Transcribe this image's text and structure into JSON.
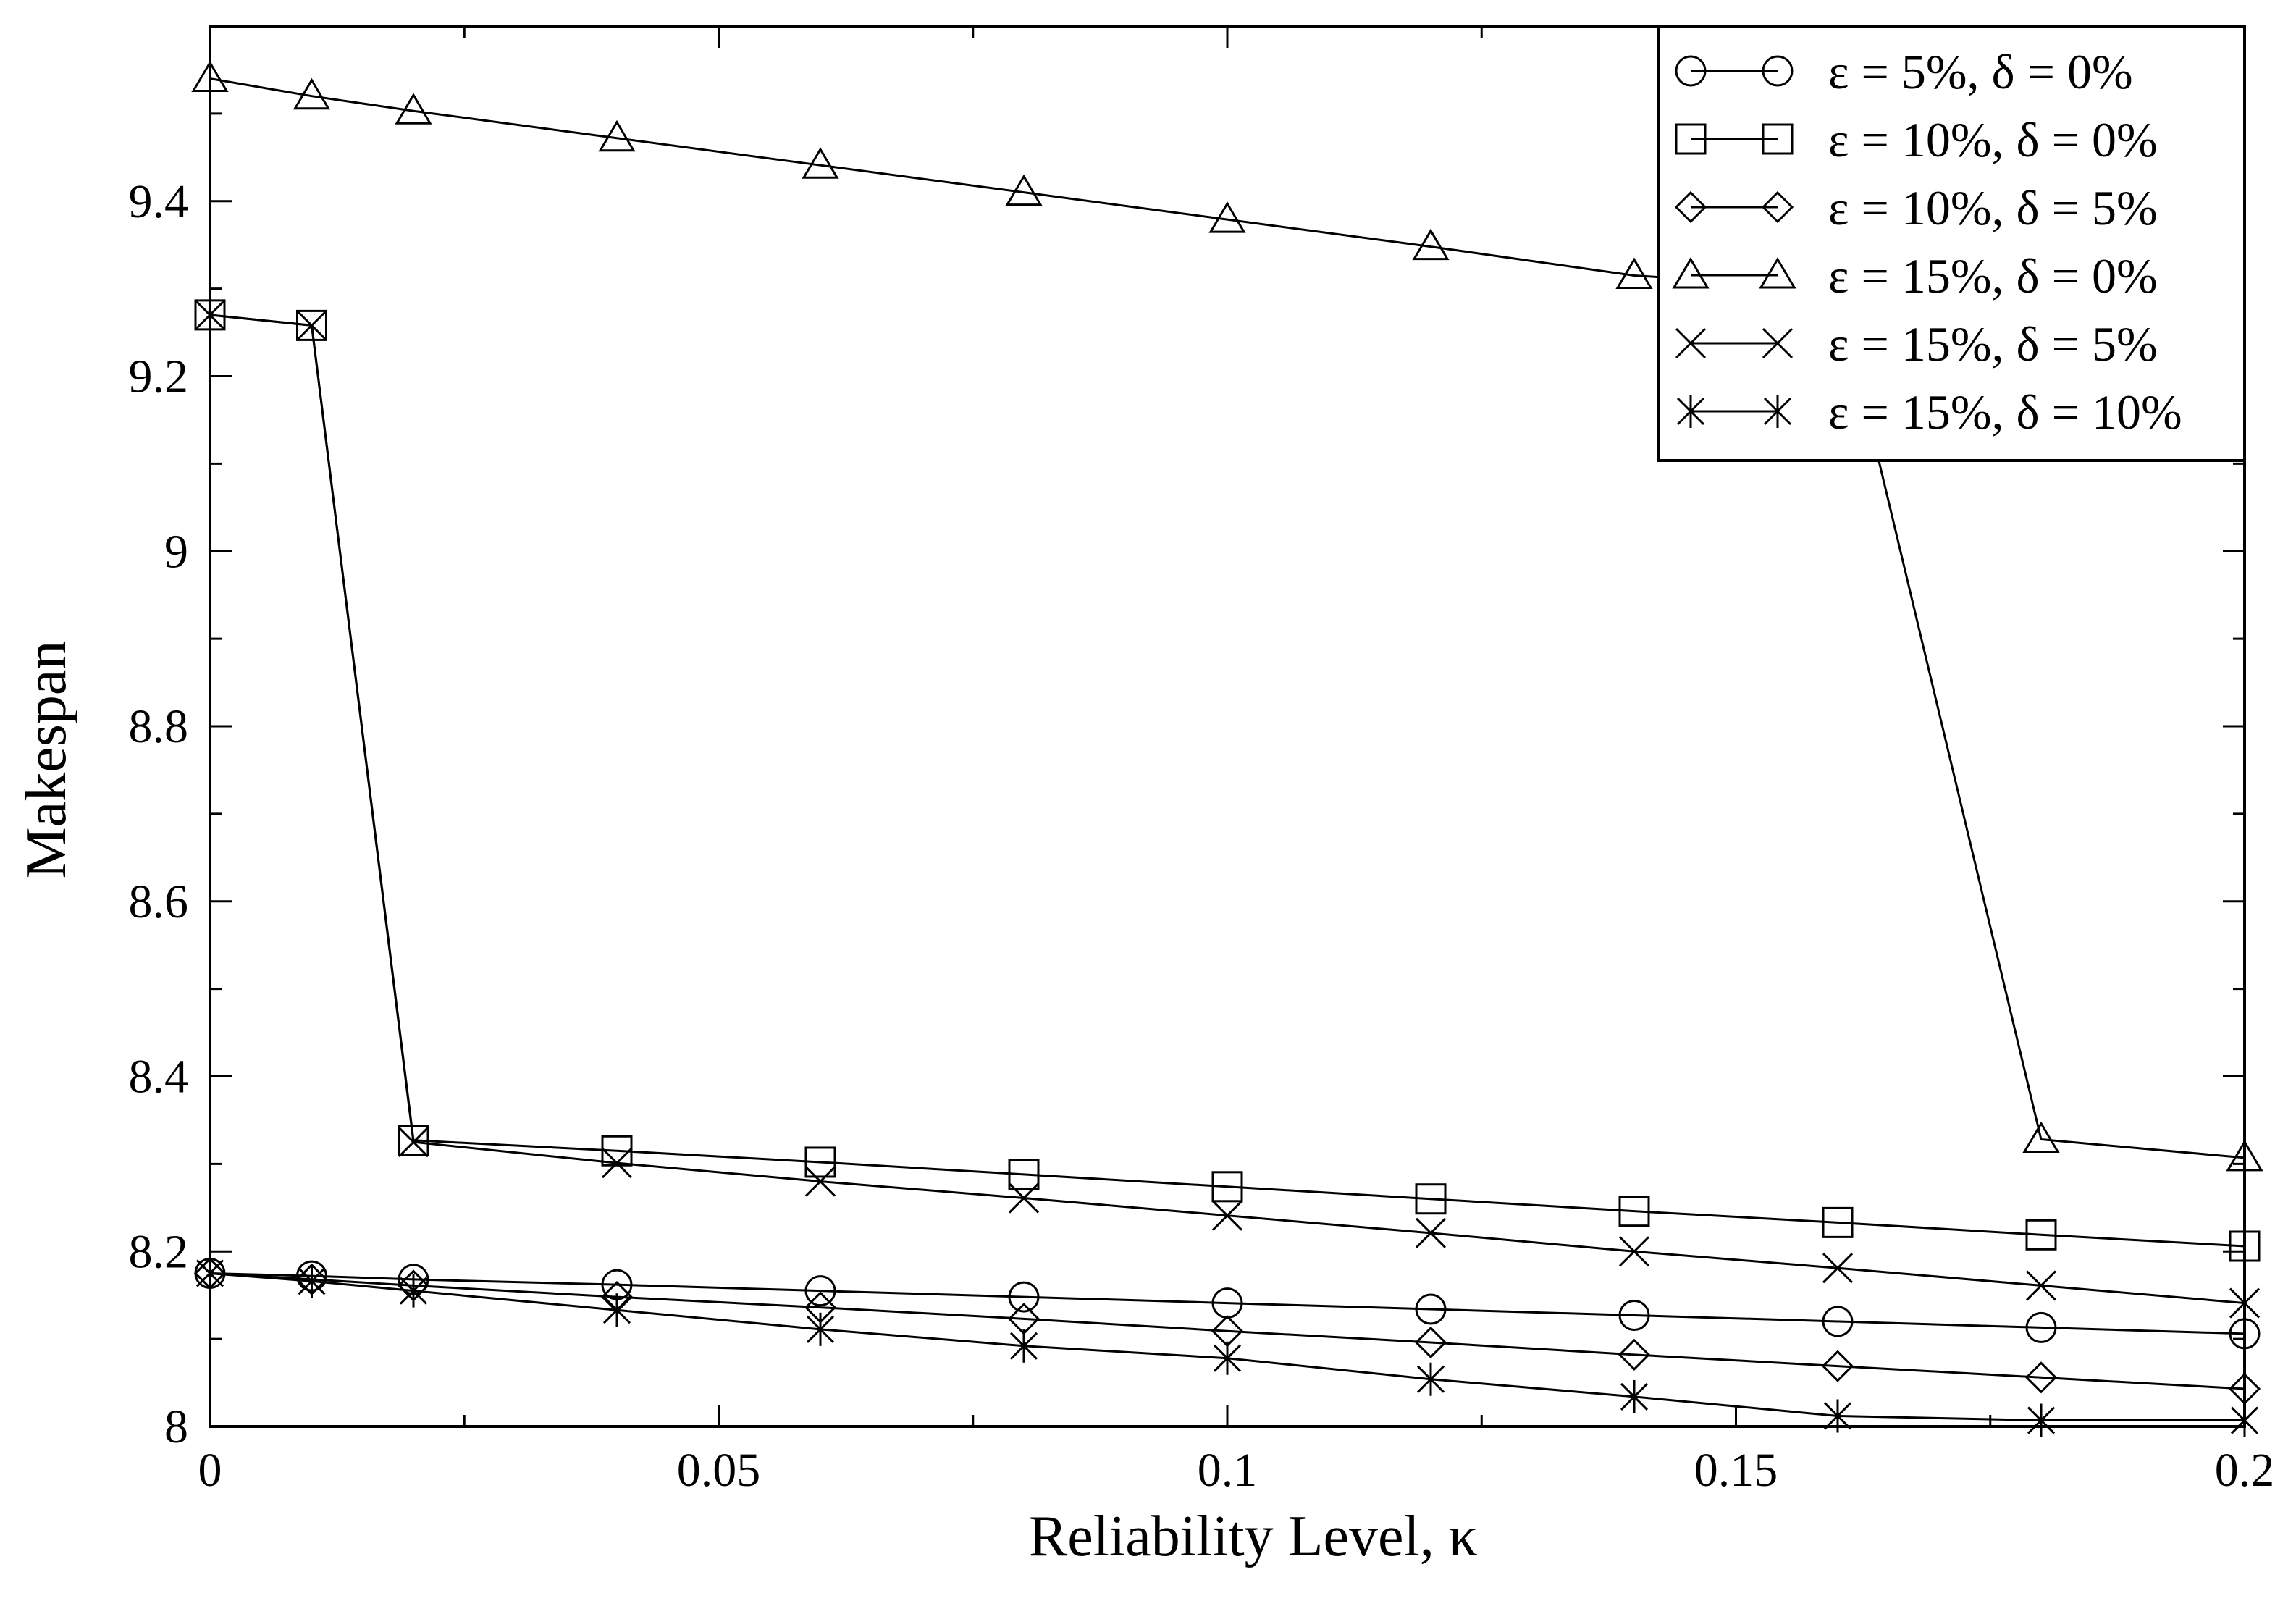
{
  "chart_data": {
    "type": "line",
    "xlabel": "Reliability Level, κ",
    "ylabel": "Makespan",
    "xlim": [
      0,
      0.2
    ],
    "ylim": [
      8,
      9.6
    ],
    "xticks": [
      0,
      0.05,
      0.1,
      0.15,
      0.2
    ],
    "xtick_labels": [
      "0",
      "0.05",
      "0.1",
      "0.15",
      "0.2"
    ],
    "yticks": [
      8,
      8.2,
      8.4,
      8.6,
      8.8,
      9,
      9.2,
      9.4
    ],
    "ytick_labels": [
      "8",
      "8.2",
      "8.4",
      "8.6",
      "8.8",
      "9",
      "9.2",
      "9.4"
    ],
    "grid": false,
    "legend_position": "top-right",
    "x": [
      0,
      0.01,
      0.02,
      0.04,
      0.06,
      0.08,
      0.1,
      0.12,
      0.14,
      0.16,
      0.18,
      0.2
    ],
    "series": [
      {
        "name": "ε = 5%, δ = 0%",
        "marker": "circle",
        "values": [
          8.175,
          8.172,
          8.168,
          8.162,
          8.155,
          8.148,
          8.141,
          8.134,
          8.127,
          8.12,
          8.113,
          8.106
        ]
      },
      {
        "name": "ε = 10%, δ = 0%",
        "marker": "square",
        "values": [
          9.27,
          9.258,
          8.327,
          8.315,
          8.302,
          8.288,
          8.274,
          8.26,
          8.246,
          8.233,
          8.219,
          8.206
        ]
      },
      {
        "name": "ε = 10%, δ = 5%",
        "marker": "diamond",
        "values": [
          8.175,
          8.168,
          8.161,
          8.148,
          8.136,
          8.123,
          8.109,
          8.096,
          8.082,
          8.069,
          8.056,
          8.043
        ]
      },
      {
        "name": "ε = 15%, δ = 0%",
        "marker": "triangle",
        "values": [
          9.54,
          9.52,
          9.503,
          9.472,
          9.441,
          9.41,
          9.379,
          9.348,
          9.315,
          9.3,
          8.328,
          8.307
        ]
      },
      {
        "name": "ε = 15%, δ = 5%",
        "marker": "x",
        "values": [
          9.27,
          9.258,
          8.325,
          8.301,
          8.28,
          8.261,
          8.241,
          8.221,
          8.2,
          8.181,
          8.161,
          8.141
        ]
      },
      {
        "name": "ε = 15%, δ = 10%",
        "marker": "asterisk",
        "values": [
          8.175,
          8.166,
          8.155,
          8.133,
          8.111,
          8.092,
          8.078,
          8.054,
          8.034,
          8.012,
          8.007,
          8.007
        ]
      }
    ]
  }
}
